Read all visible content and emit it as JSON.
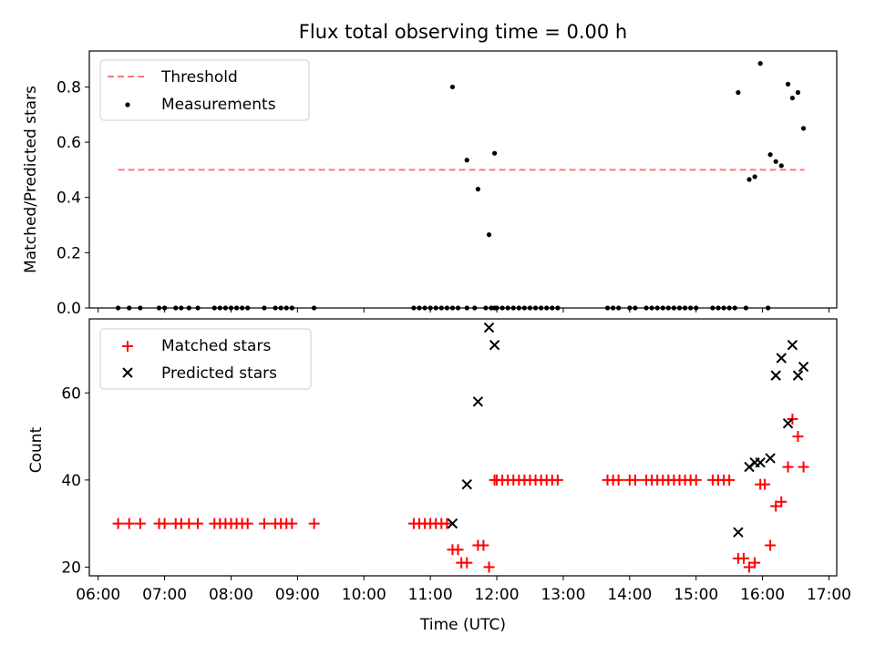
{
  "chart_data": [
    {
      "type": "scatter",
      "title": "Flux total observing time = 0.00 h",
      "xlabel": "",
      "ylabel": "Matched/Predicted stars",
      "xlim": [
        "05:52",
        "17:07"
      ],
      "ylim": [
        0,
        0.93
      ],
      "yticks": [
        0.0,
        0.2,
        0.4,
        0.6,
        0.8
      ],
      "ytick_labels": [
        "0.0",
        "0.2",
        "0.4",
        "0.6",
        "0.8"
      ],
      "legend": {
        "position": "upper-left",
        "entries": [
          "Threshold",
          "Measurements"
        ]
      },
      "threshold": {
        "name": "Threshold",
        "value": 0.5,
        "x_range": [
          "06:18",
          "16:38"
        ],
        "color": "#ff7777"
      },
      "series": [
        {
          "name": "Measurements",
          "color": "#000000",
          "x": [
            "06:18",
            "06:28",
            "06:38",
            "06:55",
            "07:00",
            "07:10",
            "07:15",
            "07:22",
            "07:30",
            "07:45",
            "07:50",
            "07:55",
            "08:00",
            "08:05",
            "08:10",
            "08:15",
            "08:30",
            "08:40",
            "08:45",
            "08:50",
            "08:55",
            "09:15",
            "10:45",
            "10:50",
            "10:55",
            "11:00",
            "11:05",
            "11:10",
            "11:15",
            "11:20",
            "11:25",
            "11:33",
            "11:40",
            "11:50",
            "11:55",
            "11:58",
            "12:00",
            "12:05",
            "12:10",
            "12:15",
            "12:20",
            "12:25",
            "12:30",
            "12:35",
            "12:40",
            "12:45",
            "12:50",
            "12:55",
            "13:40",
            "13:45",
            "13:50",
            "14:00",
            "14:05",
            "14:15",
            "14:20",
            "14:25",
            "14:30",
            "14:35",
            "14:40",
            "14:45",
            "14:50",
            "14:55",
            "15:00",
            "15:15",
            "15:20",
            "15:25",
            "15:30",
            "15:35",
            "15:45",
            "16:05",
            "11:20",
            "11:33",
            "11:43",
            "11:53",
            "11:58",
            "15:38",
            "15:48",
            "15:53",
            "16:07",
            "16:12",
            "16:17",
            "16:23",
            "16:27",
            "16:32",
            "16:37",
            "15:58"
          ],
          "y": [
            0,
            0,
            0,
            0,
            0,
            0,
            0,
            0,
            0,
            0,
            0,
            0,
            0,
            0,
            0,
            0,
            0,
            0,
            0,
            0,
            0,
            0,
            0,
            0,
            0,
            0,
            0,
            0,
            0,
            0,
            0,
            0,
            0,
            0,
            0,
            0,
            0,
            0,
            0,
            0,
            0,
            0,
            0,
            0,
            0,
            0,
            0,
            0,
            0,
            0,
            0,
            0,
            0,
            0,
            0,
            0,
            0,
            0,
            0,
            0,
            0,
            0,
            0,
            0,
            0,
            0,
            0,
            0,
            0,
            0,
            0.8,
            0.535,
            0.43,
            0.265,
            0.56,
            0.78,
            0.465,
            0.475,
            0.555,
            0.53,
            0.515,
            0.81,
            0.76,
            0.78,
            0.65,
            0.885
          ]
        }
      ]
    },
    {
      "type": "scatter",
      "title": "",
      "xlabel": "Time (UTC)",
      "ylabel": "Count",
      "xlim": [
        "05:52",
        "17:07"
      ],
      "ylim": [
        18,
        77
      ],
      "yticks": [
        20,
        40,
        60
      ],
      "ytick_labels": [
        "20",
        "40",
        "60"
      ],
      "xticks": [
        "06:00",
        "07:00",
        "08:00",
        "09:00",
        "10:00",
        "11:00",
        "12:00",
        "13:00",
        "14:00",
        "15:00",
        "16:00",
        "17:00"
      ],
      "xtick_labels": [
        "06:00",
        "07:00",
        "08:00",
        "09:00",
        "10:00",
        "11:00",
        "12:00",
        "13:00",
        "14:00",
        "15:00",
        "16:00",
        "17:00"
      ],
      "legend": {
        "position": "upper-left",
        "entries": [
          "Matched stars",
          "Predicted stars"
        ]
      },
      "series": [
        {
          "name": "Matched stars",
          "color": "#ff0000",
          "marker": "+",
          "x": [
            "06:18",
            "06:28",
            "06:38",
            "06:55",
            "07:00",
            "07:10",
            "07:15",
            "07:22",
            "07:30",
            "07:45",
            "07:50",
            "07:55",
            "08:00",
            "08:05",
            "08:10",
            "08:15",
            "08:30",
            "08:40",
            "08:45",
            "08:50",
            "08:55",
            "09:15",
            "10:45",
            "10:50",
            "10:55",
            "11:00",
            "11:05",
            "11:10",
            "11:15",
            "11:20",
            "11:25",
            "11:28",
            "11:33",
            "11:43",
            "11:48",
            "11:53",
            "11:58",
            "12:00",
            "12:05",
            "12:10",
            "12:15",
            "12:20",
            "12:25",
            "12:30",
            "12:35",
            "12:40",
            "12:45",
            "12:50",
            "12:55",
            "13:40",
            "13:45",
            "13:50",
            "14:00",
            "14:05",
            "14:15",
            "14:20",
            "14:25",
            "14:30",
            "14:35",
            "14:40",
            "14:45",
            "14:50",
            "14:55",
            "15:00",
            "15:15",
            "15:20",
            "15:25",
            "15:30",
            "15:38",
            "15:43",
            "15:48",
            "15:53",
            "15:58",
            "16:02",
            "16:07",
            "16:12",
            "16:17",
            "16:23",
            "16:27",
            "16:32",
            "16:37"
          ],
          "y": [
            30,
            30,
            30,
            30,
            30,
            30,
            30,
            30,
            30,
            30,
            30,
            30,
            30,
            30,
            30,
            30,
            30,
            30,
            30,
            30,
            30,
            30,
            30,
            30,
            30,
            30,
            30,
            30,
            30,
            24,
            24,
            21,
            21,
            25,
            25,
            20,
            40,
            40,
            40,
            40,
            40,
            40,
            40,
            40,
            40,
            40,
            40,
            40,
            40,
            40,
            40,
            40,
            40,
            40,
            40,
            40,
            40,
            40,
            40,
            40,
            40,
            40,
            40,
            40,
            40,
            40,
            40,
            40,
            22,
            22,
            20,
            21,
            39,
            39,
            25,
            34,
            35,
            43,
            54,
            50,
            43
          ]
        },
        {
          "name": "Predicted stars",
          "color": "#000000",
          "marker": "x",
          "x": [
            "11:20",
            "11:33",
            "11:43",
            "11:53",
            "11:58",
            "15:38",
            "15:48",
            "15:53",
            "15:58",
            "16:07",
            "16:12",
            "16:17",
            "16:23",
            "16:27",
            "16:32",
            "16:37"
          ],
          "y": [
            30,
            39,
            58,
            75,
            71,
            28,
            43,
            44,
            44,
            45,
            64,
            68,
            53,
            71,
            64,
            66
          ]
        }
      ]
    }
  ]
}
